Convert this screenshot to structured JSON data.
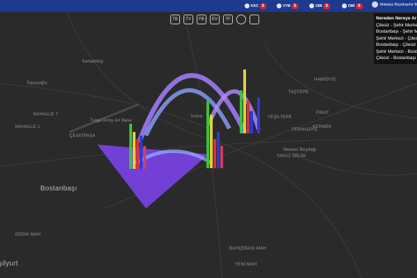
{
  "header": {
    "badges": [
      {
        "label": "KKC",
        "count": 0
      },
      {
        "label": "VYM",
        "count": 5
      },
      {
        "label": "OMI",
        "count": 0
      },
      {
        "label": "DMİ",
        "count": 0
      }
    ],
    "user": "Malatya Büyükşehir B"
  },
  "toolbar": [
    "TB",
    "TV",
    "FB",
    "EV",
    "TF"
  ],
  "panel": {
    "title": "Nereden Nereye Ar",
    "items": [
      "Çilesiz - Şehir Merke",
      "Bostanbaşı - Şehir M",
      "Şehir Merkezi - Çilesi",
      "Bostanbaşı - Çilesiz -",
      "Şehir Merkezi - Bostan",
      "Çilesiz - Bostanbaşı"
    ]
  },
  "map_labels": [
    "Samanköy",
    "Topçuoğlu",
    "MAHALLE 7",
    "MAHALLE 1",
    "ÇEVATPAŞA",
    "Tulga Army Air Base",
    "Bostanbaşı",
    "İnönü",
    "HAMİDİYE",
    "TAŞTEPE",
    "FIRAT",
    "YEŞİLTEPE",
    "FERHADİYE",
    "KERMEK",
    "Merkez Beydağı",
    "YAVUZ SELİM",
    "BAHÇEBAŞI MAH",
    "YENİ MAH",
    "GEDİK MAH",
    "Yeşilyurt"
  ]
}
